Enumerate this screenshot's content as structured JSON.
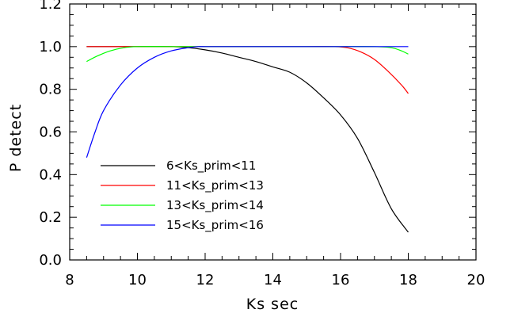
{
  "chart_data": {
    "type": "line",
    "xlabel": "Ks sec",
    "ylabel": "P detect",
    "xlim": [
      8,
      20
    ],
    "ylim": [
      0,
      1.2
    ],
    "x_ticks": [
      8,
      10,
      12,
      14,
      16,
      18,
      20
    ],
    "y_ticks": [
      0.0,
      0.2,
      0.4,
      0.6,
      0.8,
      1.0,
      1.2
    ],
    "x_tick_labels": [
      "8",
      "10",
      "12",
      "14",
      "16",
      "18",
      "20"
    ],
    "y_tick_labels": [
      "0.0",
      "0.2",
      "0.4",
      "0.6",
      "0.8",
      "1.0",
      "1.2"
    ],
    "grid": false,
    "legend_position": "lower-left",
    "series": [
      {
        "name": "6<Ks_prim<11",
        "color": "#000000",
        "x": [
          8.5,
          9.0,
          10.0,
          11.0,
          11.5,
          12.0,
          12.5,
          13.0,
          13.5,
          14.0,
          14.5,
          15.0,
          15.5,
          16.0,
          16.5,
          17.0,
          17.5,
          18.0
        ],
        "y": [
          1.0,
          1.0,
          1.0,
          1.0,
          0.995,
          0.985,
          0.97,
          0.95,
          0.93,
          0.905,
          0.88,
          0.83,
          0.76,
          0.68,
          0.57,
          0.41,
          0.24,
          0.13
        ]
      },
      {
        "name": "11<Ks_prim<13",
        "color": "#ff0000",
        "x": [
          8.5,
          9.0,
          10.0,
          11.0,
          12.0,
          13.0,
          14.0,
          15.0,
          15.8,
          16.2,
          16.6,
          17.0,
          17.4,
          17.8,
          18.0
        ],
        "y": [
          1.0,
          1.0,
          1.0,
          1.0,
          1.0,
          1.0,
          1.0,
          1.0,
          1.0,
          0.995,
          0.975,
          0.94,
          0.885,
          0.82,
          0.78
        ]
      },
      {
        "name": "13<Ks_prim<14",
        "color": "#00ff00",
        "x": [
          8.5,
          8.8,
          9.2,
          9.6,
          10.0,
          11.0,
          12.0,
          13.0,
          14.0,
          15.0,
          16.0,
          17.0,
          17.5,
          17.8,
          18.0
        ],
        "y": [
          0.93,
          0.955,
          0.98,
          0.995,
          1.0,
          1.0,
          1.0,
          1.0,
          1.0,
          1.0,
          1.0,
          1.0,
          0.995,
          0.98,
          0.965
        ]
      },
      {
        "name": "15<Ks_prim<16",
        "color": "#0000ff",
        "x": [
          8.5,
          8.75,
          9.0,
          9.5,
          10.0,
          10.5,
          11.0,
          11.5,
          11.8,
          12.0,
          13.0,
          14.0,
          15.0,
          16.0,
          17.0,
          18.0
        ],
        "y": [
          0.48,
          0.6,
          0.7,
          0.82,
          0.9,
          0.95,
          0.98,
          0.995,
          1.0,
          1.0,
          1.0,
          1.0,
          1.0,
          1.0,
          1.0,
          1.0
        ]
      }
    ]
  }
}
